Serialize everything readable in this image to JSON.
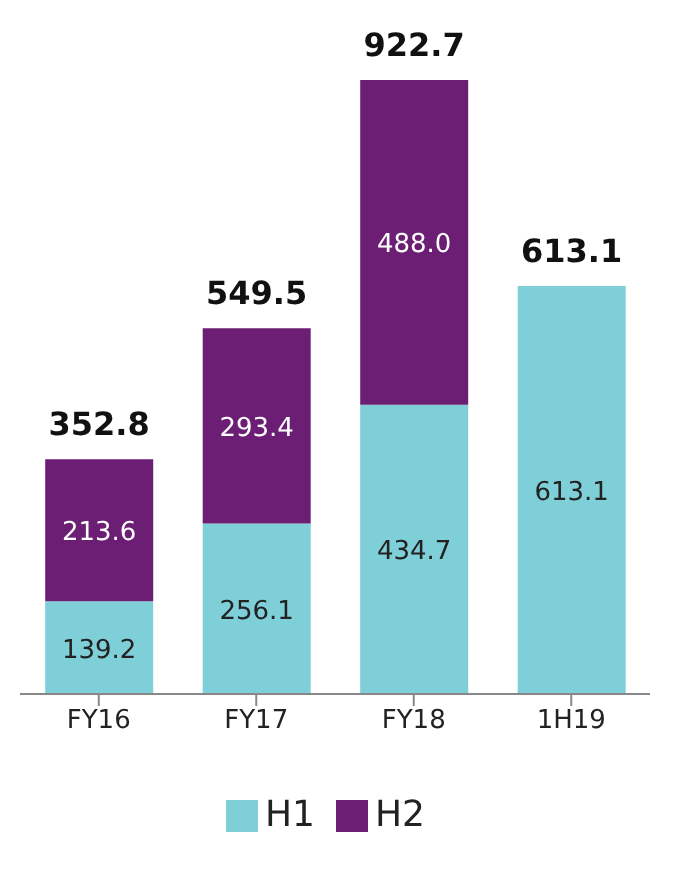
{
  "chart_data": {
    "type": "bar",
    "stacked": true,
    "categories": [
      "FY16",
      "FY17",
      "FY18",
      "1H19"
    ],
    "series": [
      {
        "name": "H1",
        "color": "#7ecfd8",
        "values": [
          139.2,
          256.1,
          434.7,
          613.1
        ],
        "value_labels": [
          "139.2",
          "256.1",
          "434.7",
          "613.1"
        ]
      },
      {
        "name": "H2",
        "color": "#6b1e74",
        "values": [
          213.6,
          293.4,
          488.0,
          null
        ],
        "value_labels": [
          "213.6",
          "293.4",
          "488.0",
          null
        ]
      }
    ],
    "totals": [
      "352.8",
      "549.5",
      "922.7",
      "613.1"
    ],
    "legend": "bottom"
  }
}
